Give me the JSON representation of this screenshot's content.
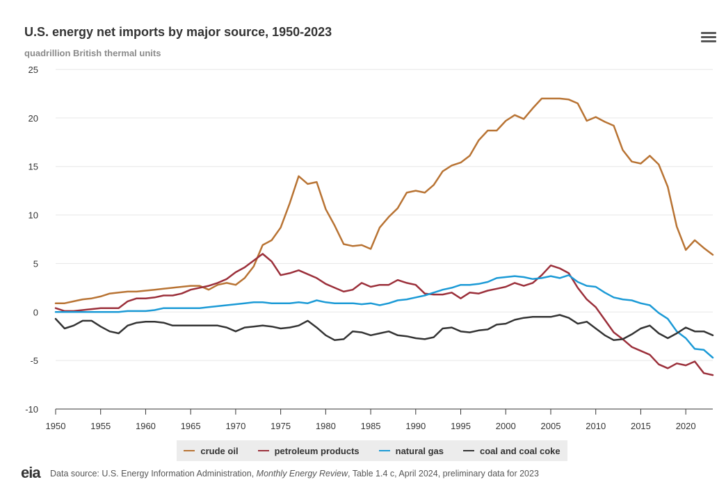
{
  "title": "U.S. energy net imports by major source, 1950-2023",
  "subtitle": "quadrillion British thermal units",
  "footer": {
    "prefix": "Data source: U.S. Energy Information Administration, ",
    "publication": "Monthly Energy Review",
    "suffix": ", Table 1.4 c, April 2024, preliminary data for 2023"
  },
  "logo_text": "eia",
  "colors": {
    "crude_oil": "#b87333",
    "petroleum_products": "#9b2f3a",
    "natural_gas": "#1b9ad6",
    "coal": "#333333"
  },
  "chart_data": {
    "type": "line",
    "title": "U.S. energy net imports by major source, 1950-2023",
    "ylabel": "quadrillion British thermal units",
    "xlim": [
      1950,
      2023
    ],
    "ylim": [
      -10,
      25
    ],
    "yticks": [
      -10,
      -5,
      0,
      5,
      10,
      15,
      20,
      25
    ],
    "xticks": [
      1950,
      1955,
      1960,
      1965,
      1970,
      1975,
      1980,
      1985,
      1990,
      1995,
      2000,
      2005,
      2010,
      2015,
      2020
    ],
    "grid": true,
    "legend_position": "bottom",
    "x": [
      1950,
      1951,
      1952,
      1953,
      1954,
      1955,
      1956,
      1957,
      1958,
      1959,
      1960,
      1961,
      1962,
      1963,
      1964,
      1965,
      1966,
      1967,
      1968,
      1969,
      1970,
      1971,
      1972,
      1973,
      1974,
      1975,
      1976,
      1977,
      1978,
      1979,
      1980,
      1981,
      1982,
      1983,
      1984,
      1985,
      1986,
      1987,
      1988,
      1989,
      1990,
      1991,
      1992,
      1993,
      1994,
      1995,
      1996,
      1997,
      1998,
      1999,
      2000,
      2001,
      2002,
      2003,
      2004,
      2005,
      2006,
      2007,
      2008,
      2009,
      2010,
      2011,
      2012,
      2013,
      2014,
      2015,
      2016,
      2017,
      2018,
      2019,
      2020,
      2021,
      2022,
      2023
    ],
    "series": [
      {
        "name": "crude oil",
        "color": "#b87333",
        "values": [
          0.9,
          0.9,
          1.1,
          1.3,
          1.4,
          1.6,
          1.9,
          2.0,
          2.1,
          2.1,
          2.2,
          2.3,
          2.4,
          2.5,
          2.6,
          2.7,
          2.7,
          2.3,
          2.8,
          3.0,
          2.8,
          3.5,
          4.7,
          6.9,
          7.4,
          8.7,
          11.2,
          14.0,
          13.2,
          13.4,
          10.6,
          8.9,
          7.0,
          6.8,
          6.9,
          6.5,
          8.7,
          9.8,
          10.7,
          12.3,
          12.5,
          12.3,
          13.1,
          14.5,
          15.1,
          15.4,
          16.1,
          17.7,
          18.7,
          18.7,
          19.7,
          20.3,
          19.9,
          21.0,
          22.0,
          22.0,
          22.0,
          21.9,
          21.5,
          19.7,
          20.1,
          19.6,
          19.2,
          16.7,
          15.5,
          15.3,
          16.1,
          15.2,
          12.9,
          8.8,
          6.4,
          7.4,
          6.6,
          5.9
        ]
      },
      {
        "name": "petroleum products",
        "color": "#9b2f3a",
        "values": [
          0.4,
          0.1,
          0.1,
          0.2,
          0.3,
          0.4,
          0.4,
          0.4,
          1.1,
          1.4,
          1.4,
          1.5,
          1.7,
          1.7,
          1.9,
          2.3,
          2.5,
          2.7,
          3.0,
          3.4,
          4.1,
          4.6,
          5.3,
          6.0,
          5.2,
          3.8,
          4.0,
          4.3,
          3.9,
          3.5,
          2.9,
          2.5,
          2.1,
          2.3,
          3.0,
          2.6,
          2.8,
          2.8,
          3.3,
          3.0,
          2.8,
          1.9,
          1.8,
          1.8,
          2.0,
          1.4,
          2.0,
          1.9,
          2.2,
          2.4,
          2.6,
          3.0,
          2.7,
          3.0,
          3.8,
          4.8,
          4.5,
          4.0,
          2.5,
          1.3,
          0.5,
          -0.8,
          -2.1,
          -2.8,
          -3.6,
          -4.0,
          -4.4,
          -5.4,
          -5.8,
          -5.3,
          -5.5,
          -5.1,
          -6.3,
          -6.5
        ]
      },
      {
        "name": "natural gas",
        "color": "#1b9ad6",
        "values": [
          0.0,
          0.0,
          0.0,
          0.0,
          0.0,
          0.0,
          0.0,
          0.0,
          0.1,
          0.1,
          0.1,
          0.2,
          0.4,
          0.4,
          0.4,
          0.4,
          0.4,
          0.5,
          0.6,
          0.7,
          0.8,
          0.9,
          1.0,
          1.0,
          0.9,
          0.9,
          0.9,
          1.0,
          0.9,
          1.2,
          1.0,
          0.9,
          0.9,
          0.9,
          0.8,
          0.9,
          0.7,
          0.9,
          1.2,
          1.3,
          1.5,
          1.7,
          2.0,
          2.3,
          2.5,
          2.8,
          2.8,
          2.9,
          3.1,
          3.5,
          3.6,
          3.7,
          3.6,
          3.4,
          3.5,
          3.7,
          3.5,
          3.8,
          3.1,
          2.7,
          2.6,
          2.0,
          1.5,
          1.3,
          1.2,
          0.9,
          0.7,
          -0.1,
          -0.7,
          -2.0,
          -2.7,
          -3.8,
          -3.9,
          -4.7
        ]
      },
      {
        "name": "coal and coal coke",
        "color": "#333333",
        "values": [
          -0.7,
          -1.7,
          -1.4,
          -0.9,
          -0.9,
          -1.5,
          -2.0,
          -2.2,
          -1.4,
          -1.1,
          -1.0,
          -1.0,
          -1.1,
          -1.4,
          -1.4,
          -1.4,
          -1.4,
          -1.4,
          -1.4,
          -1.6,
          -2.0,
          -1.6,
          -1.5,
          -1.4,
          -1.5,
          -1.7,
          -1.6,
          -1.4,
          -0.9,
          -1.6,
          -2.4,
          -2.9,
          -2.8,
          -2.0,
          -2.1,
          -2.4,
          -2.2,
          -2.0,
          -2.4,
          -2.5,
          -2.7,
          -2.8,
          -2.6,
          -1.7,
          -1.6,
          -2.0,
          -2.1,
          -1.9,
          -1.8,
          -1.3,
          -1.2,
          -0.8,
          -0.6,
          -0.5,
          -0.5,
          -0.5,
          -0.3,
          -0.6,
          -1.2,
          -1.0,
          -1.7,
          -2.4,
          -2.9,
          -2.8,
          -2.3,
          -1.7,
          -1.4,
          -2.2,
          -2.7,
          -2.2,
          -1.6,
          -2.0,
          -2.0,
          -2.4
        ]
      }
    ]
  }
}
